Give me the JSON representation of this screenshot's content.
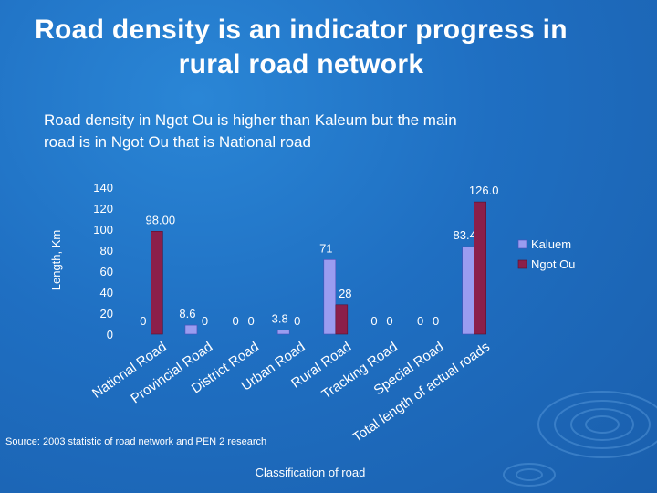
{
  "slide": {
    "title_line1": "Road density is an indicator progress in",
    "title_line2": "rural road network",
    "subtitle_line1": "Road density in Ngot Ou is higher than Kaleum but the main",
    "subtitle_line2": "road is in Ngot Ou that is National road",
    "source": "Source: 2003 statistic of road network and PEN 2 research"
  },
  "colors": {
    "kaleum": "#9a9cf0",
    "ngot_ou": "#8b1f4a",
    "text": "#ffffff"
  },
  "chart_data": {
    "type": "bar",
    "xlabel": "Classification of road",
    "ylabel": "Length, Km",
    "ylim": [
      0,
      140
    ],
    "yticks": [
      0,
      20,
      40,
      60,
      80,
      100,
      120,
      140
    ],
    "legend_position": "right",
    "grid": false,
    "categories": [
      "National Road",
      "Provincial Road",
      "District Road",
      "Urban Road",
      "Rural Road",
      "Tracking Road",
      "Special Road",
      "Total length of actual roads"
    ],
    "series": [
      {
        "name": "Kaluem",
        "values": [
          0,
          8.6,
          0,
          3.8,
          71,
          0,
          0,
          83.4
        ],
        "labels": [
          "0",
          "8.6",
          "0",
          "3.8",
          "71",
          "0",
          "0",
          "83.4"
        ]
      },
      {
        "name": "Ngot Ou",
        "values": [
          98.0,
          0,
          0,
          0,
          28,
          0,
          0,
          126.0
        ],
        "labels": [
          "98.00",
          "0",
          "0",
          "0",
          "28",
          "0",
          "0",
          "126.0"
        ]
      }
    ]
  }
}
